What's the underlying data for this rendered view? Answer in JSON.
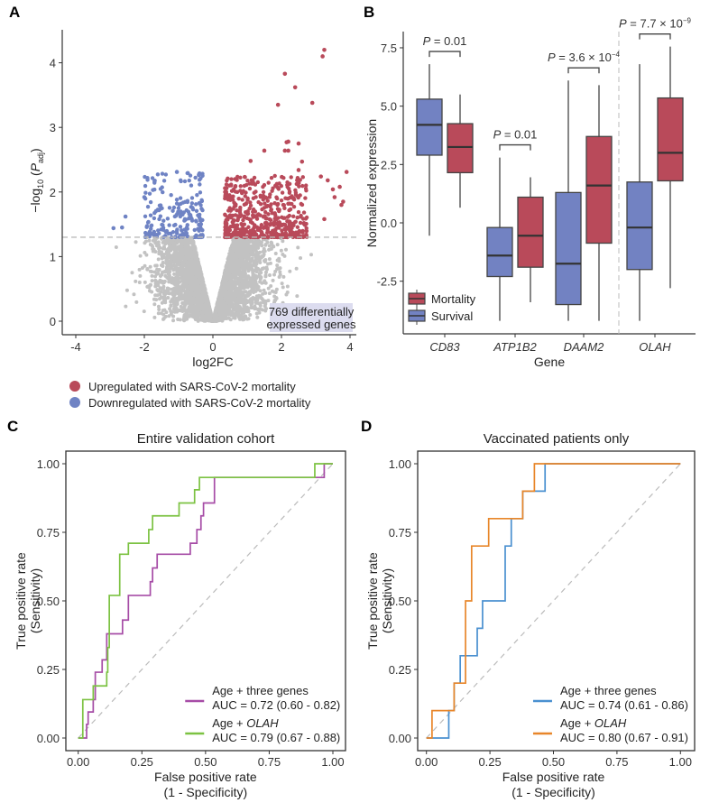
{
  "colors": {
    "up": "#b94a5a",
    "down": "#6f83c4",
    "ns": "#c2c2c2",
    "survival": "#7282c2",
    "mortality": "#b94a5a",
    "purple": "#a64ca6",
    "green": "#7cc242",
    "blue": "#4a90d0",
    "orange": "#e8862a",
    "annotation_bg": "#dcdcef"
  },
  "chart_data": [
    {
      "panel": "A",
      "type": "scatter",
      "xlabel": "log2FC",
      "ylabel": "−log10 (Padj)",
      "xlim": [
        -4.3,
        4.2
      ],
      "ylim": [
        -0.2,
        4.5
      ],
      "xticks": [
        -4,
        -2,
        0,
        2,
        4
      ],
      "yticks": [
        0,
        1,
        2,
        3,
        4
      ],
      "threshold_y": 1.3,
      "annotation": [
        "769 differentially",
        "expressed genes"
      ],
      "legend": [
        {
          "label": "Upregulated with SARS-CoV-2 mortality",
          "color": "#b94a5a"
        },
        {
          "label": "Downregulated with SARS-CoV-2 mortality",
          "color": "#6f83c4"
        }
      ],
      "highlight_points_up": [
        [
          3.25,
          4.2
        ],
        [
          3.2,
          4.1
        ],
        [
          2.1,
          3.83
        ],
        [
          2.4,
          3.62
        ],
        [
          1.9,
          3.35
        ],
        [
          2.9,
          3.38
        ],
        [
          2.15,
          2.77
        ],
        [
          2.2,
          2.78
        ],
        [
          2.5,
          2.75
        ],
        [
          1.5,
          2.64
        ],
        [
          2.1,
          2.64
        ],
        [
          2.2,
          2.64
        ],
        [
          1.1,
          2.48
        ],
        [
          2.6,
          2.47
        ],
        [
          2.5,
          2.34
        ],
        [
          3.9,
          2.31
        ],
        [
          3.15,
          2.24
        ],
        [
          3.35,
          2.18
        ],
        [
          3.7,
          2.08
        ],
        [
          3.5,
          2.04
        ],
        [
          3.55,
          1.92
        ],
        [
          3.8,
          1.85
        ],
        [
          3.75,
          1.8
        ],
        [
          3.25,
          1.58
        ]
      ],
      "highlight_points_down": [
        [
          -2.9,
          1.44
        ],
        [
          -2.65,
          1.45
        ],
        [
          -2.55,
          1.62
        ],
        [
          -2.0,
          1.92
        ],
        [
          -1.05,
          2.31
        ]
      ]
    },
    {
      "panel": "B",
      "type": "box",
      "xlabel": "Gene",
      "ylabel": "Normalized expression",
      "ylim": [
        -4.5,
        8.0
      ],
      "yticks": [
        -2.5,
        0.0,
        2.5,
        5.0,
        7.5
      ],
      "ytick_labels": [
        "-2.5",
        "0.0",
        "2.5",
        "5.0",
        "7.5"
      ],
      "legend": [
        {
          "label": "Mortality",
          "color": "#b94a5a"
        },
        {
          "label": "Survival",
          "color": "#7282c2"
        }
      ],
      "genes": [
        {
          "name": "CD83",
          "p": "P = 0.01",
          "survival": {
            "min": -0.55,
            "q1": 2.9,
            "median": 4.2,
            "q3": 5.3,
            "max": 6.8
          },
          "mortality": {
            "min": 0.65,
            "q1": 2.15,
            "median": 3.25,
            "q3": 4.25,
            "max": 5.5
          }
        },
        {
          "name": "ATP1B2",
          "p": "P = 0.01",
          "survival": {
            "min": -4.2,
            "q1": -2.3,
            "median": -1.4,
            "q3": -0.2,
            "max": 2.8
          },
          "mortality": {
            "min": -3.4,
            "q1": -1.9,
            "median": -0.55,
            "q3": 1.1,
            "max": 1.95
          }
        },
        {
          "name": "DAAM2",
          "p": "P = 3.6 × 10",
          "p_exp": "−4",
          "survival": {
            "min": -4.2,
            "q1": -3.5,
            "median": -1.75,
            "q3": 1.3,
            "max": 6.1
          },
          "mortality": {
            "min": -4.2,
            "q1": -0.87,
            "median": 1.6,
            "q3": 3.7,
            "max": 5.9
          }
        },
        {
          "name": "OLAH",
          "p": "P = 7.7 × 10",
          "p_exp": "−9",
          "survival": {
            "min": -4.2,
            "q1": -2.0,
            "median": -0.2,
            "q3": 1.75,
            "max": 6.8
          },
          "mortality": {
            "min": -2.8,
            "q1": 1.8,
            "median": 3.0,
            "q3": 5.35,
            "max": 7.55
          }
        }
      ]
    },
    {
      "panel": "C",
      "type": "line",
      "title": "Entire validation cohort",
      "xlabel": "False positive rate",
      "xlabel2": "(1 - Specificity)",
      "ylabel": "True positive rate",
      "ylabel2": "(Sensitivity)",
      "xlim": [
        0,
        1
      ],
      "ylim": [
        0,
        1
      ],
      "ticks": [
        "0.00",
        "0.25",
        "0.50",
        "0.75",
        "1.00"
      ],
      "series": [
        {
          "name": "Age + three genes",
          "auc": "AUC = 0.72 (0.60 - 0.82)",
          "color": "#a64ca6",
          "fpr": [
            0,
            0.033,
            0.033,
            0.039,
            0.039,
            0.059,
            0.059,
            0.067,
            0.067,
            0.094,
            0.094,
            0.112,
            0.112,
            0.174,
            0.174,
            0.197,
            0.197,
            0.283,
            0.283,
            0.292,
            0.292,
            0.31,
            0.31,
            0.44,
            0.44,
            0.466,
            0.466,
            0.482,
            0.482,
            0.492,
            0.492,
            0.535,
            0.535,
            0.966,
            0.966,
            1.0
          ],
          "tpr": [
            0,
            0,
            0.05,
            0.05,
            0.095,
            0.095,
            0.14,
            0.14,
            0.24,
            0.24,
            0.285,
            0.285,
            0.38,
            0.38,
            0.43,
            0.43,
            0.52,
            0.52,
            0.57,
            0.57,
            0.62,
            0.62,
            0.67,
            0.67,
            0.71,
            0.71,
            0.76,
            0.76,
            0.81,
            0.81,
            0.857,
            0.857,
            0.95,
            0.95,
            1.0,
            1.0
          ]
        },
        {
          "name": "Age + OLAH",
          "name_plain": "Age + ",
          "name_italic": "OLAH",
          "auc": "AUC = 0.79 (0.67 - 0.88)",
          "color": "#7cc242",
          "fpr": [
            0,
            0.018,
            0.018,
            0.059,
            0.059,
            0.112,
            0.112,
            0.116,
            0.116,
            0.122,
            0.122,
            0.163,
            0.163,
            0.197,
            0.197,
            0.277,
            0.277,
            0.292,
            0.292,
            0.396,
            0.396,
            0.457,
            0.457,
            0.476,
            0.476,
            0.929,
            0.929,
            1.0
          ],
          "tpr": [
            0,
            0,
            0.14,
            0.14,
            0.19,
            0.19,
            0.24,
            0.24,
            0.33,
            0.33,
            0.52,
            0.52,
            0.67,
            0.67,
            0.71,
            0.71,
            0.76,
            0.76,
            0.81,
            0.81,
            0.857,
            0.857,
            0.905,
            0.905,
            0.95,
            0.95,
            1.0,
            1.0
          ]
        }
      ]
    },
    {
      "panel": "D",
      "type": "line",
      "title": "Vaccinated patients only",
      "xlabel": "False positive rate",
      "xlabel2": "(1 - Specificity)",
      "ylabel": "True positive rate",
      "ylabel2": "(Sensitivity)",
      "xlim": [
        0,
        1
      ],
      "ylim": [
        0,
        1
      ],
      "ticks": [
        "0.00",
        "0.25",
        "0.50",
        "0.75",
        "1.00"
      ],
      "series": [
        {
          "name": "Age + three genes",
          "auc": "AUC = 0.74 (0.61 - 0.86)",
          "color": "#4a90d0",
          "fpr": [
            0,
            0.088,
            0.088,
            0.109,
            0.109,
            0.133,
            0.133,
            0.2,
            0.2,
            0.221,
            0.221,
            0.31,
            0.31,
            0.334,
            0.334,
            0.379,
            0.379,
            0.467,
            0.467,
            1.0
          ],
          "tpr": [
            0,
            0,
            0.1,
            0.1,
            0.2,
            0.2,
            0.3,
            0.3,
            0.4,
            0.4,
            0.5,
            0.5,
            0.7,
            0.7,
            0.8,
            0.8,
            0.9,
            0.9,
            1.0,
            1.0
          ]
        },
        {
          "name": "Age + OLAH",
          "name_plain": "Age + ",
          "name_italic": "OLAH",
          "auc": "AUC = 0.80 (0.67 - 0.91)",
          "color": "#e8862a",
          "fpr": [
            0,
            0.022,
            0.022,
            0.109,
            0.109,
            0.154,
            0.154,
            0.178,
            0.178,
            0.245,
            0.245,
            0.379,
            0.379,
            0.425,
            0.425,
            1.0
          ],
          "tpr": [
            0,
            0,
            0.1,
            0.1,
            0.2,
            0.2,
            0.5,
            0.5,
            0.7,
            0.7,
            0.8,
            0.8,
            0.9,
            0.9,
            1.0,
            1.0
          ]
        }
      ]
    }
  ],
  "panels": {
    "a": "A",
    "b": "B",
    "c": "C",
    "d": "D"
  }
}
